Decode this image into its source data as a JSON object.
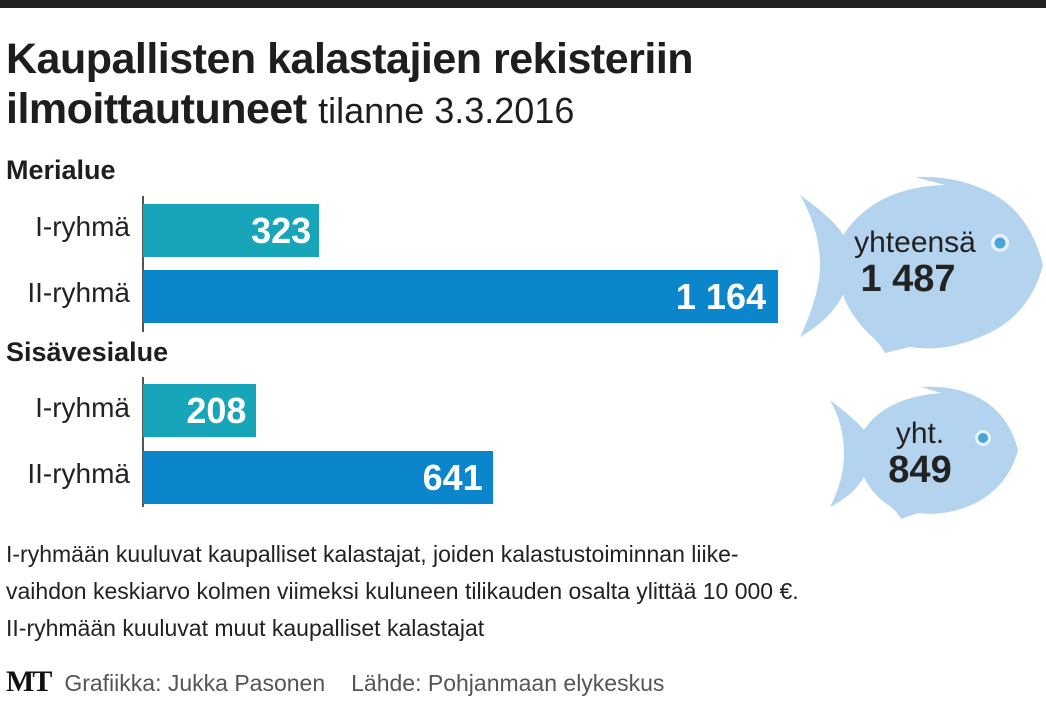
{
  "title": {
    "main_line1": "Kaupallisten kalastajien rekisteriin",
    "main_line2": "ilmoittautuneet",
    "subtitle": "tilanne 3.3.2016"
  },
  "colors": {
    "group1": "#17a6b9",
    "group2": "#0b86cd",
    "fish": "#b4d3ee",
    "eye": "#4aa3d9"
  },
  "chart_data": {
    "type": "bar",
    "orientation": "horizontal",
    "title": "Kaupallisten kalastajien rekisteriin ilmoittautuneet tilanne 3.3.2016",
    "groups": [
      {
        "name": "Merialue",
        "categories": [
          "I-ryhmä",
          "II-ryhmä"
        ],
        "values": [
          323,
          1164
        ],
        "labels": [
          "323",
          "1 164"
        ],
        "total_label": "yhteensä",
        "total": "1 487"
      },
      {
        "name": "Sisävesialue",
        "categories": [
          "I-ryhmä",
          "II-ryhmä"
        ],
        "values": [
          208,
          641
        ],
        "labels": [
          "208",
          "641"
        ],
        "total_label": "yht.",
        "total": "849"
      }
    ],
    "xlim": [
      0,
      1164
    ]
  },
  "notes": [
    "I-ryhmään kuuluvat kaupalliset kalastajat, joiden kalastustoiminnan liike-",
    "vaihdon keskiarvo kolmen viimeksi kuluneen tilikauden osalta ylittää 10 000 €.",
    "II-ryhmään kuuluvat muut kaupalliset kalastajat"
  ],
  "footer": {
    "logo": "MT",
    "graphics": "Grafiikka: Jukka Pasonen",
    "source": "Lähde: Pohjanmaan elykeskus"
  }
}
